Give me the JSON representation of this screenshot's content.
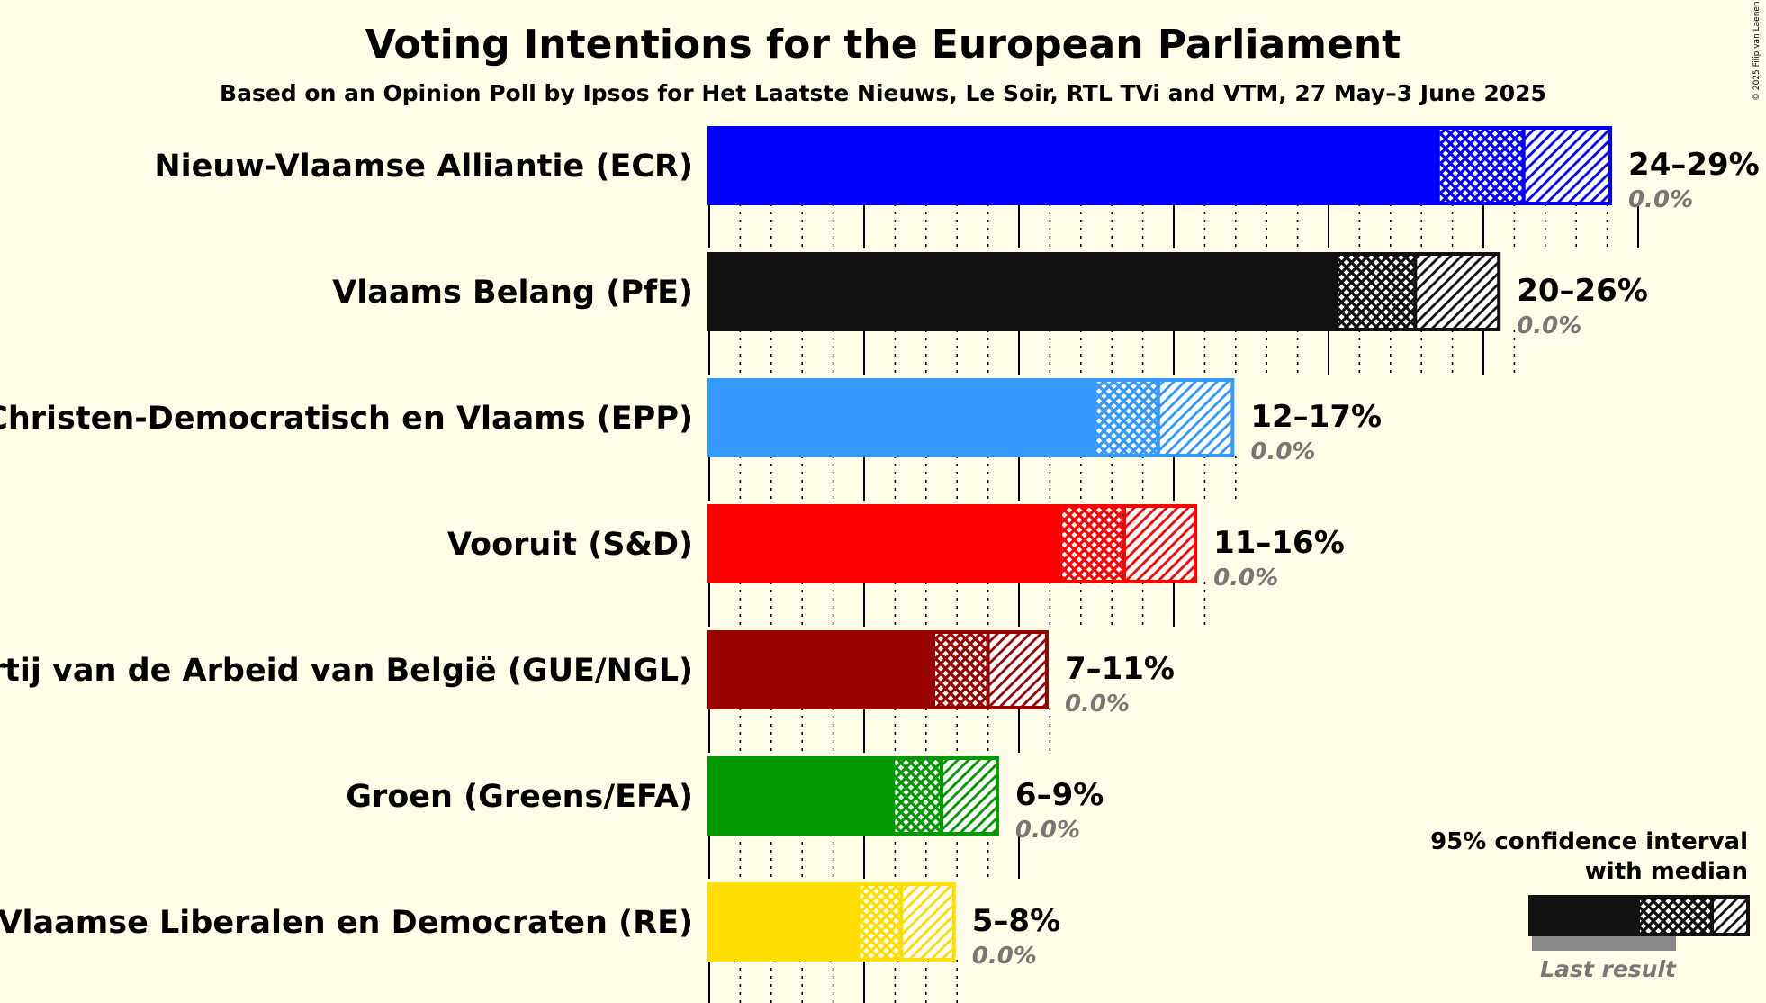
{
  "header": {
    "title": "Voting Intentions for the European Parliament",
    "subtitle": "Based on an Opinion Poll by Ipsos for Het Laatste Nieuws, Le Soir, RTL TVi and VTM, 27 May–3 June 2025"
  },
  "copyright": "© 2025 Filip van Laenen",
  "legend": {
    "line1": "95% confidence interval",
    "line2": "with median",
    "last_result": "Last result",
    "color": "#111111"
  },
  "chart_data": {
    "type": "bar",
    "orientation": "horizontal",
    "x_unit": "%",
    "xlim": [
      0,
      30
    ],
    "gridlines": {
      "major_every": 5,
      "minor_every": 1
    },
    "parties": [
      {
        "name": "Nieuw-Vlaamse Alliantie (ECR)",
        "color": "#0000ff",
        "low": 23.6,
        "median": 26.3,
        "high": 29.1,
        "range_label": "24–29%",
        "last_result": 0.0,
        "last_label": "0.0%"
      },
      {
        "name": "Vlaams Belang (PfE)",
        "color": "#111111",
        "low": 20.3,
        "median": 22.8,
        "high": 25.5,
        "range_label": "20–26%",
        "last_result": 0.0,
        "last_label": "0.0%"
      },
      {
        "name": "Christen-Democratisch en Vlaams (EPP)",
        "color": "#3399ff",
        "low": 12.5,
        "median": 14.5,
        "high": 16.9,
        "range_label": "12–17%",
        "last_result": 0.0,
        "last_label": "0.0%"
      },
      {
        "name": "Vooruit (S&D)",
        "color": "#ff0000",
        "low": 11.4,
        "median": 13.4,
        "high": 15.7,
        "range_label": "11–16%",
        "last_result": 0.0,
        "last_label": "0.0%"
      },
      {
        "name": "Partij van de Arbeid van België (GUE/NGL)",
        "color": "#990000",
        "low": 7.3,
        "median": 9.0,
        "high": 10.9,
        "range_label": "7–11%",
        "last_result": 0.0,
        "last_label": "0.0%"
      },
      {
        "name": "Groen (Greens/EFA)",
        "color": "#009900",
        "low": 6.0,
        "median": 7.5,
        "high": 9.3,
        "range_label": "6–9%",
        "last_result": 0.0,
        "last_label": "0.0%"
      },
      {
        "name": "Open Vlaamse Liberalen en Democraten (RE)",
        "color": "#ffdd00",
        "low": 4.9,
        "median": 6.2,
        "high": 7.9,
        "range_label": "5–8%",
        "last_result": 0.0,
        "last_label": "0.0%"
      }
    ]
  }
}
